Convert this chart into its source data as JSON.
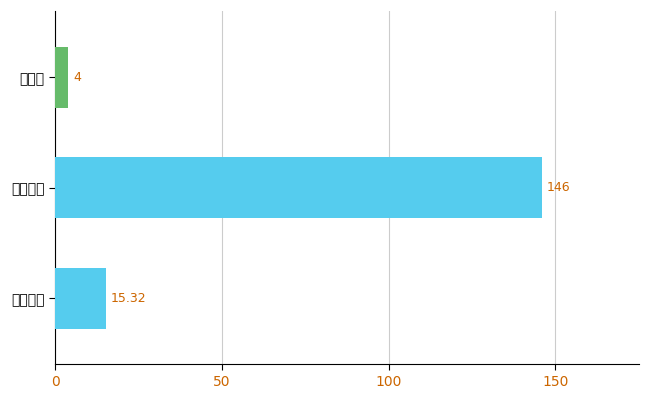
{
  "categories": [
    "全国平均",
    "全国最大",
    "山形県"
  ],
  "values": [
    15.32,
    146,
    4
  ],
  "bar_colors": [
    "#55CCEE",
    "#55CCEE",
    "#66BB6A"
  ],
  "bar_labels": [
    "15.32",
    "146",
    "4"
  ],
  "label_color": "#CC6600",
  "xlim": [
    0,
    175
  ],
  "xticks": [
    0,
    50,
    100,
    150
  ],
  "grid_color": "#CCCCCC",
  "background_color": "#FFFFFF",
  "bar_height": 0.55,
  "figsize": [
    6.5,
    4.0
  ],
  "dpi": 100,
  "spine_color": "#000000",
  "ytick_color": "#000000",
  "xtick_label_color": "#CC6600"
}
